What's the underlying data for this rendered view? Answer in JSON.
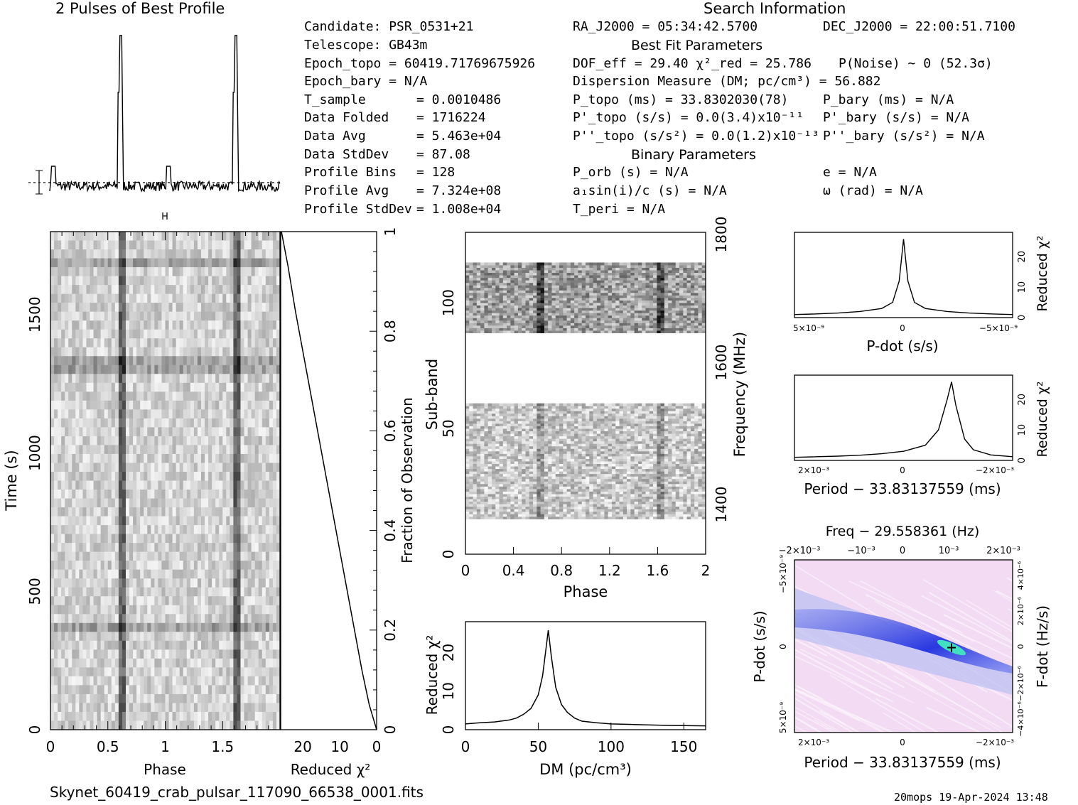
{
  "header": {
    "profile_title": "2 Pulses of Best Profile",
    "search_title": "Search Information",
    "best_fit_title": "Best Fit Parameters",
    "binary_title": "Binary Parameters",
    "footer_file": "Skynet_60419_crab_pulsar_117090_66538_0001.fits",
    "footer_stamp": "20mops 19-Apr-2024 13:48"
  },
  "info_left": [
    {
      "label": "Candidate:  PSR_0531+21",
      "value": ""
    },
    {
      "label": "Telescope:  GB43m",
      "value": ""
    },
    {
      "label": "Epoch_topo = 60419.71769675926",
      "value": ""
    },
    {
      "label": "Epoch_bary = N/A",
      "value": ""
    },
    {
      "label": "T_sample",
      "value": "=  0.0010486"
    },
    {
      "label": "Data Folded",
      "value": "=  1716224"
    },
    {
      "label": "Data Avg",
      "value": "=  5.463e+04"
    },
    {
      "label": "Data StdDev",
      "value": "=  87.08"
    },
    {
      "label": "Profile Bins",
      "value": "=  128"
    },
    {
      "label": "Profile Avg",
      "value": "=  7.324e+08"
    },
    {
      "label": "Profile StdDev",
      "value": "=  1.008e+04"
    }
  ],
  "info_mid": [
    "RA_J2000 = 05:34:42.5700",
    "DOF_eff = 29.40  χ²_red = 25.786",
    "Dispersion Measure (DM; pc/cm³) = 56.882",
    "P_topo (ms) =  33.8302030(78)",
    "P'_topo (s/s) = 0.0(3.4)x10⁻¹¹",
    "P''_topo (s/s²) = 0.0(1.2)x10⁻¹³",
    "P_orb (s) = N/A",
    "a₁sin(i)/c (s) = N/A",
    "T_peri = N/A"
  ],
  "info_right": [
    "DEC_J2000 = 22:00:51.7100",
    "P(Noise) ~ 0   (52.3σ)",
    "P_bary (ms) = N/A",
    "P'_bary (s/s) = N/A",
    "P''_bary (s/s²) = N/A",
    "e = N/A",
    "ω (rad) = N/A"
  ],
  "colors": {
    "ink": "#000000",
    "ppdot_bg": "#f3dcf3",
    "ppdot_band": "#2030e0",
    "ppdot_peak": "#40e0c0"
  },
  "chart_data": [
    {
      "id": "profile",
      "type": "line",
      "title": "2 Pulses of Best Profile",
      "x": [
        0.0,
        0.1,
        0.2,
        0.3,
        0.4,
        0.5,
        0.55,
        0.6,
        0.62,
        0.64,
        0.7,
        0.8,
        0.9,
        1.0,
        1.1,
        1.2,
        1.3,
        1.4,
        1.5,
        1.55,
        1.6,
        1.62,
        1.64,
        1.7,
        1.8,
        1.9,
        2.0
      ],
      "y": [
        0.1,
        -0.05,
        -0.08,
        -0.06,
        -0.07,
        -0.05,
        0.0,
        0.6,
        1.0,
        0.3,
        -0.02,
        0.08,
        -0.08,
        0.1,
        -0.05,
        -0.08,
        -0.06,
        -0.07,
        -0.05,
        0.0,
        0.6,
        1.0,
        0.3,
        -0.02,
        0.08,
        -0.08,
        0.1
      ],
      "ylim": [
        -0.15,
        1.05
      ]
    },
    {
      "id": "time_phase",
      "type": "heatmap",
      "xlabel": "Phase",
      "ylabel": "Time (s)",
      "xticks": [
        "0",
        "0.5",
        "1",
        "1.5"
      ],
      "yticks": [
        "0",
        "500",
        "1000",
        "1500"
      ],
      "xlim": [
        0,
        2
      ],
      "ylim": [
        0,
        1800
      ],
      "pulse_phases": [
        0.62,
        1.62
      ]
    },
    {
      "id": "chi_vs_time",
      "type": "line",
      "xlabel": "Reduced χ²",
      "ylabel": "Fraction of Observation",
      "xticks": [
        "20",
        "10",
        "0"
      ],
      "yticks": [
        "0",
        "0.2",
        "0.4",
        "0.6",
        "0.8",
        "1"
      ],
      "xlim": [
        26,
        0
      ],
      "ylim": [
        0,
        1
      ],
      "x": [
        0,
        2,
        4,
        6,
        8,
        10,
        12,
        14,
        16,
        18,
        20,
        22,
        24,
        25.8
      ],
      "y": [
        0,
        0.05,
        0.12,
        0.2,
        0.28,
        0.36,
        0.44,
        0.52,
        0.6,
        0.68,
        0.76,
        0.84,
        0.93,
        1.0
      ]
    },
    {
      "id": "subband_phase",
      "type": "heatmap",
      "xlabel": "Phase",
      "ylabel": "Sub-band",
      "y2label": "Frequency (MHz)",
      "xticks": [
        "0",
        "0.4",
        "0.8",
        "1.2",
        "1.6",
        "2"
      ],
      "yticks": [
        "0",
        "50",
        "100"
      ],
      "y2ticks": [
        "1400",
        "1600",
        "1800"
      ],
      "xlim": [
        0,
        2
      ],
      "ylim": [
        0,
        128
      ],
      "band_rows": [
        [
          14,
          60
        ],
        [
          88,
          116
        ]
      ]
    },
    {
      "id": "dm_curve",
      "type": "line",
      "xlabel": "DM (pc/cm³)",
      "ylabel": "Reduced χ²",
      "xticks": [
        "0",
        "50",
        "100",
        "150"
      ],
      "yticks": [
        "0",
        "10",
        "20"
      ],
      "xlim": [
        0,
        165
      ],
      "ylim": [
        0,
        28
      ],
      "x": [
        0,
        10,
        20,
        30,
        35,
        40,
        45,
        50,
        53,
        55,
        56.9,
        59,
        62,
        66,
        70,
        75,
        80,
        90,
        100,
        120,
        140,
        165
      ],
      "y": [
        1.5,
        1.8,
        2.0,
        2.5,
        3.0,
        4.0,
        5.5,
        9.0,
        14.0,
        20.0,
        25.8,
        19.0,
        11.0,
        6.5,
        4.5,
        3.0,
        2.2,
        1.8,
        1.5,
        1.3,
        1.1,
        1.0
      ]
    },
    {
      "id": "pdot_curve",
      "type": "line",
      "xlabel": "P-dot (s/s)",
      "y2label": "Reduced χ²",
      "xticks": [
        "5×10⁻⁹",
        "0",
        "−5×10⁻⁹"
      ],
      "yticks": [
        "0",
        "10",
        "20"
      ],
      "xlim": [
        5,
        -5
      ],
      "ylim": [
        0,
        28
      ],
      "x": [
        5,
        4,
        3,
        2,
        1,
        0.5,
        0.2,
        0,
        -0.2,
        -0.5,
        -1,
        -2,
        -3,
        -4,
        -5
      ],
      "y": [
        1,
        1.2,
        1.5,
        2,
        3,
        5,
        12,
        25.8,
        12,
        5,
        3,
        2,
        1.5,
        1.2,
        1
      ]
    },
    {
      "id": "period_curve",
      "type": "line",
      "xlabel": "Period − 33.83137559 (ms)",
      "y2label": "Reduced χ²",
      "xticks": [
        "2×10⁻³",
        "0",
        "−2×10⁻³"
      ],
      "yticks": [
        "0",
        "10",
        "20"
      ],
      "xlim": [
        2.5,
        -2.5
      ],
      "ylim": [
        0,
        28
      ],
      "x": [
        2.5,
        2,
        1.5,
        1,
        0.5,
        0,
        -0.5,
        -0.8,
        -1.0,
        -1.1,
        -1.2,
        -1.4,
        -1.6,
        -2,
        -2.5
      ],
      "y": [
        1,
        1.2,
        1.4,
        1.7,
        2.2,
        3,
        5,
        10,
        20,
        25.8,
        18,
        7,
        3.5,
        1.8,
        1.2
      ]
    },
    {
      "id": "ppdot_plane",
      "type": "heatmap",
      "title": "Freq − 29.558361 (Hz)",
      "xlabel": "Period − 33.83137559 (ms)",
      "ylabel": "P-dot (s/s)",
      "y2label": "F-dot (Hz/s)",
      "xticks": [
        "2×10⁻³",
        "0",
        "−2×10⁻³"
      ],
      "x2ticks": [
        "−2×10⁻³",
        "−10⁻³",
        "0",
        "10⁻³",
        "2×10⁻³"
      ],
      "yticks": [
        "5×10⁻⁹",
        "0",
        "−5×10⁻⁹"
      ],
      "y2ticks": [
        "−4×10⁻⁶",
        "−2×10⁻⁶",
        "0",
        "2×10⁻⁶",
        "4×10⁻⁶"
      ],
      "best_period": -1.1,
      "best_pdot": 0
    }
  ]
}
